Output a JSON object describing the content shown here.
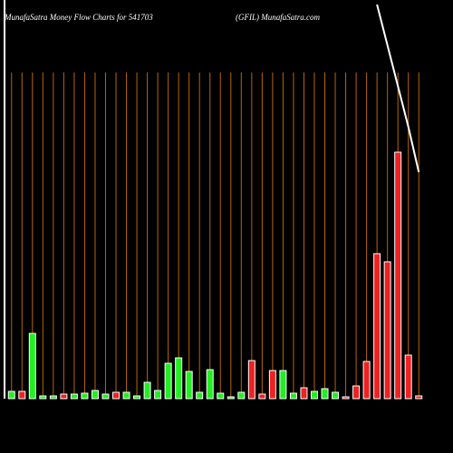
{
  "chart_data": {
    "type": "bar",
    "title": "MunafaSatra  Money Flow  Charts for 541703",
    "subtitle": "(GFIL) MunafaSatra.com",
    "categories": [
      null,
      null,
      null,
      null,
      null,
      null,
      null,
      null,
      null,
      null,
      null,
      null,
      null,
      null,
      null,
      null,
      null,
      null,
      null,
      null,
      null,
      null,
      null,
      null,
      null,
      null,
      null,
      null,
      null,
      null,
      null,
      null,
      null,
      null,
      null,
      null,
      null,
      null,
      null,
      null
    ],
    "values": [
      8,
      8,
      72,
      3,
      3,
      5,
      5,
      6,
      9,
      5,
      7,
      7,
      3,
      18,
      9,
      39,
      45,
      30,
      7,
      32,
      6,
      2,
      7,
      42,
      5,
      31,
      31,
      6,
      12,
      8,
      11,
      7,
      2,
      14,
      41,
      160,
      151,
      272,
      48,
      3
    ],
    "colors": [
      "#22ee22",
      "#ee2222",
      "#22ee22",
      "#22ee22",
      "#22ee22",
      "#ee2222",
      "#22ee22",
      "#22ee22",
      "#22ee22",
      "#22ee22",
      "#ee2222",
      "#22ee22",
      "#22ee22",
      "#22ee22",
      "#22ee22",
      "#22ee22",
      "#22ee22",
      "#22ee22",
      "#22ee22",
      "#22ee22",
      "#22ee22",
      "#22ee22",
      "#22ee22",
      "#ee2222",
      "#ee2222",
      "#ee2222",
      "#22ee22",
      "#22ee22",
      "#ee2222",
      "#22ee22",
      "#22ee22",
      "#22ee22",
      "#ee2222",
      "#ee2222",
      "#ee2222",
      "#ee2222",
      "#ee2222",
      "#ee2222",
      "#ee2222",
      "#ee2222"
    ],
    "ylim": [
      0,
      360
    ],
    "grid": true,
    "grid_color": "#b8650a",
    "line": {
      "color": "#ffffff",
      "axis": "y2",
      "values": [
        null,
        null,
        null,
        null,
        null,
        null,
        null,
        null,
        null,
        null,
        null,
        null,
        null,
        null,
        null,
        null,
        null,
        null,
        null,
        null,
        null,
        null,
        null,
        null,
        null,
        null,
        null,
        null,
        null,
        null,
        null,
        null,
        null,
        null,
        null,
        435,
        390,
        345,
        300,
        250
      ]
    },
    "y2lim": [
      0,
      440
    ]
  }
}
